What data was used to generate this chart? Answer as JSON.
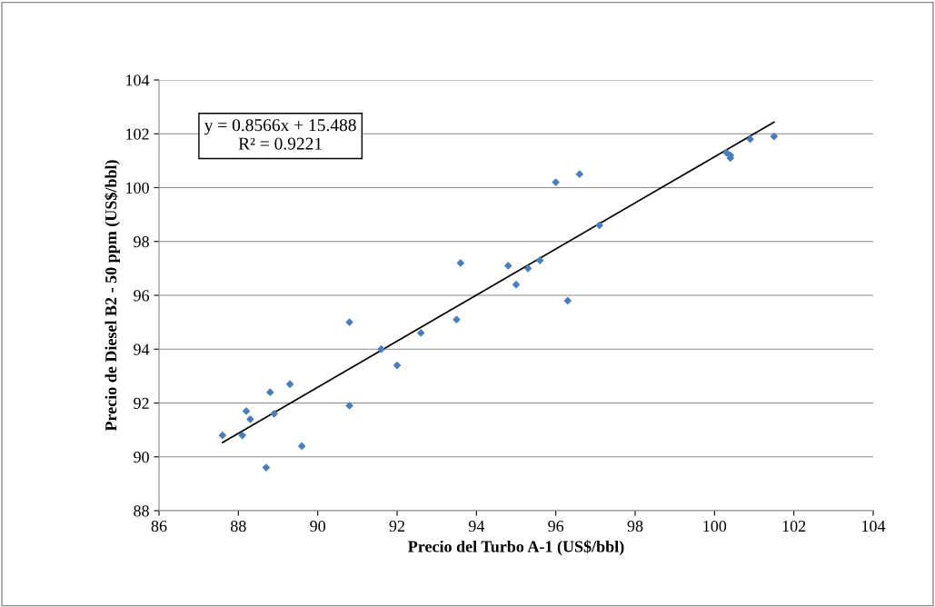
{
  "chart_data": {
    "type": "scatter",
    "xlabel": "Precio del Turbo A-1 (US$/bbl)",
    "ylabel": "Precio de Diesel B2 - 50 ppm (US$/bbl)",
    "xlim": [
      86,
      104
    ],
    "xticks": [
      86,
      88,
      90,
      92,
      94,
      96,
      98,
      100,
      102,
      104
    ],
    "ylim": [
      88,
      104
    ],
    "yticks": [
      88,
      90,
      92,
      94,
      96,
      98,
      100,
      102,
      104
    ],
    "grid": "y",
    "legend": false,
    "annotations": [
      "y = 0.8566x + 15.488\nR² = 0.9221"
    ],
    "series": [
      {
        "marker": "diamond",
        "color": "#4a7ebb",
        "x": [
          87.6,
          88.2,
          88.3,
          88.1,
          88.8,
          88.9,
          88.7,
          89.3,
          89.6,
          90.8,
          90.8,
          91.6,
          92.0,
          92.6,
          93.5,
          93.6,
          94.8,
          95.0,
          95.3,
          95.6,
          96.3,
          96.0,
          96.6,
          97.1,
          100.3,
          100.4,
          100.4,
          100.9,
          101.5
        ],
        "values": [
          90.8,
          91.7,
          91.4,
          90.8,
          92.4,
          91.6,
          89.6,
          92.7,
          90.4,
          95.0,
          91.9,
          94.0,
          93.4,
          94.6,
          95.1,
          97.2,
          97.1,
          96.4,
          97.0,
          97.3,
          95.8,
          100.2,
          100.5,
          98.6,
          101.3,
          101.2,
          101.1,
          101.8,
          101.9
        ]
      },
      {
        "type": "line",
        "marker": "none",
        "color": "#000000",
        "x": [
          87.6,
          101.5
        ],
        "values": [
          90.53,
          102.43
        ]
      }
    ]
  }
}
